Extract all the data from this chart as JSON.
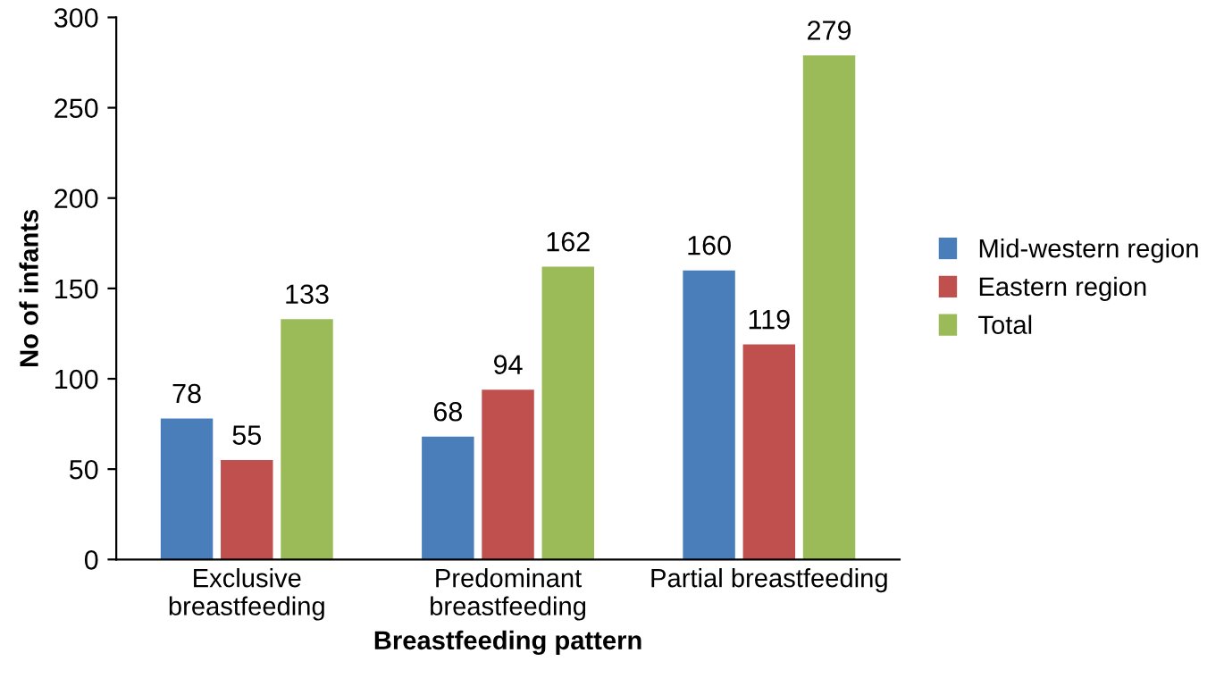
{
  "chart_data": {
    "type": "bar",
    "xlabel": "Breastfeeding pattern",
    "ylabel": "No of infants",
    "categories": [
      "Exclusive\nbreastfeeding",
      "Predominant\nbreastfeeding",
      "Partial breastfeeding"
    ],
    "series": [
      {
        "name": "Mid-western region",
        "color": "#4a7ebb",
        "values": [
          78,
          68,
          160
        ]
      },
      {
        "name": "Eastern region",
        "color": "#c0504d",
        "values": [
          55,
          94,
          119
        ]
      },
      {
        "name": "Total",
        "color": "#9bbb59",
        "values": [
          133,
          162,
          279
        ]
      }
    ],
    "ylim": [
      0,
      300
    ],
    "yticks": [
      0,
      50,
      100,
      150,
      200,
      250,
      300
    ],
    "grid": false,
    "legend": "right",
    "data_labels": true
  }
}
